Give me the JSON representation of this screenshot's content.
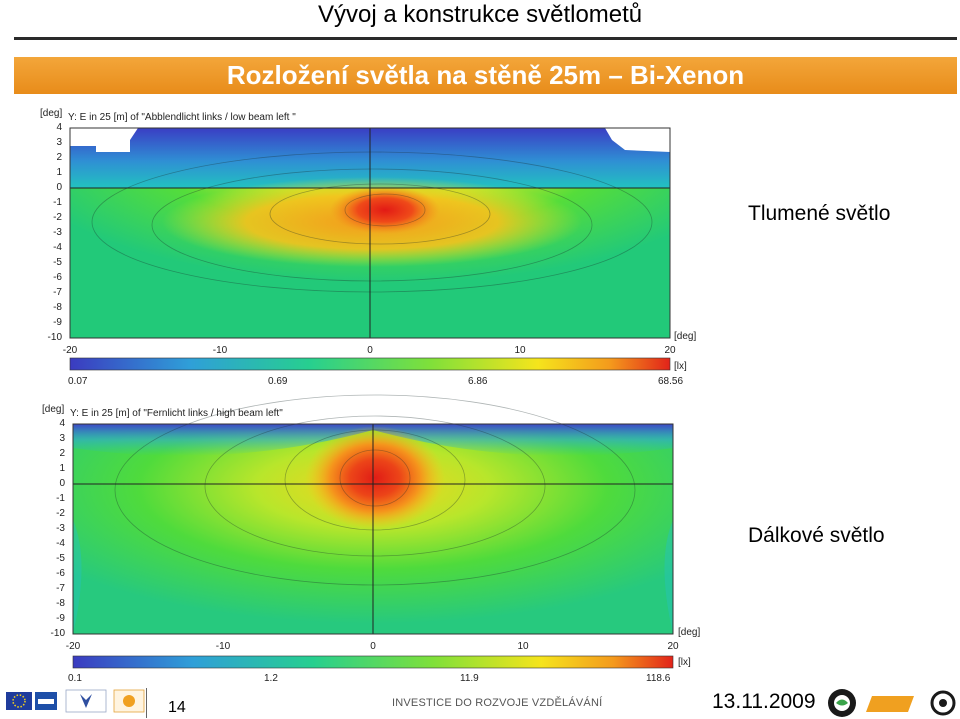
{
  "slide": {
    "title": "Vývoj a konstrukce světlometů",
    "banner": "Rozložení světla na stěně 25m – Bi-Xenon",
    "page_number": "14",
    "footer_text": "INVESTICE DO ROZVOJE VZDĚLÁVÁNÍ",
    "date": "13.11.2009"
  },
  "plots": [
    {
      "unit_y": "[deg]",
      "unit_x": "[deg]",
      "unit_lx": "[lx]",
      "title": "Y: E in 25 [m] of \"Abblendlicht links / low beam left \"",
      "yticks": [
        "4",
        "3",
        "2",
        "1",
        "0",
        "-1",
        "-2",
        "-3",
        "-4",
        "-5",
        "-6",
        "-7",
        "-8",
        "-9",
        "-10"
      ],
      "xticks": [
        "-20",
        "-10",
        "0",
        "10",
        "20"
      ],
      "scale_labels": [
        "0.07",
        "0.69",
        "6.86",
        "68.56"
      ],
      "side_label": "Tlumené světlo"
    },
    {
      "unit_y": "[deg]",
      "unit_x": "[deg]",
      "unit_lx": "[lx]",
      "title": "Y: E in 25 [m] of \"Fernlicht links / high beam left\"",
      "yticks": [
        "4",
        "3",
        "2",
        "1",
        "0",
        "-1",
        "-2",
        "-3",
        "-4",
        "-5",
        "-6",
        "-7",
        "-8",
        "-9",
        "-10"
      ],
      "xticks": [
        "-20",
        "-10",
        "0",
        "10",
        "20"
      ],
      "scale_labels": [
        "0.1",
        "1.2",
        "11.9",
        "118.6"
      ],
      "side_label": "Dálkové světlo"
    }
  ],
  "colors": {
    "banner": "#ec961f",
    "hot": "#e8251a",
    "mid": "#f6e01c",
    "field": "#2fd07a",
    "low": "#4a55c8"
  },
  "logos": [
    "eu-flag-logo",
    "esf-logo",
    "msmt-logo",
    "op-vk-logo",
    "skoda-logo",
    "e-tech-logo"
  ]
}
